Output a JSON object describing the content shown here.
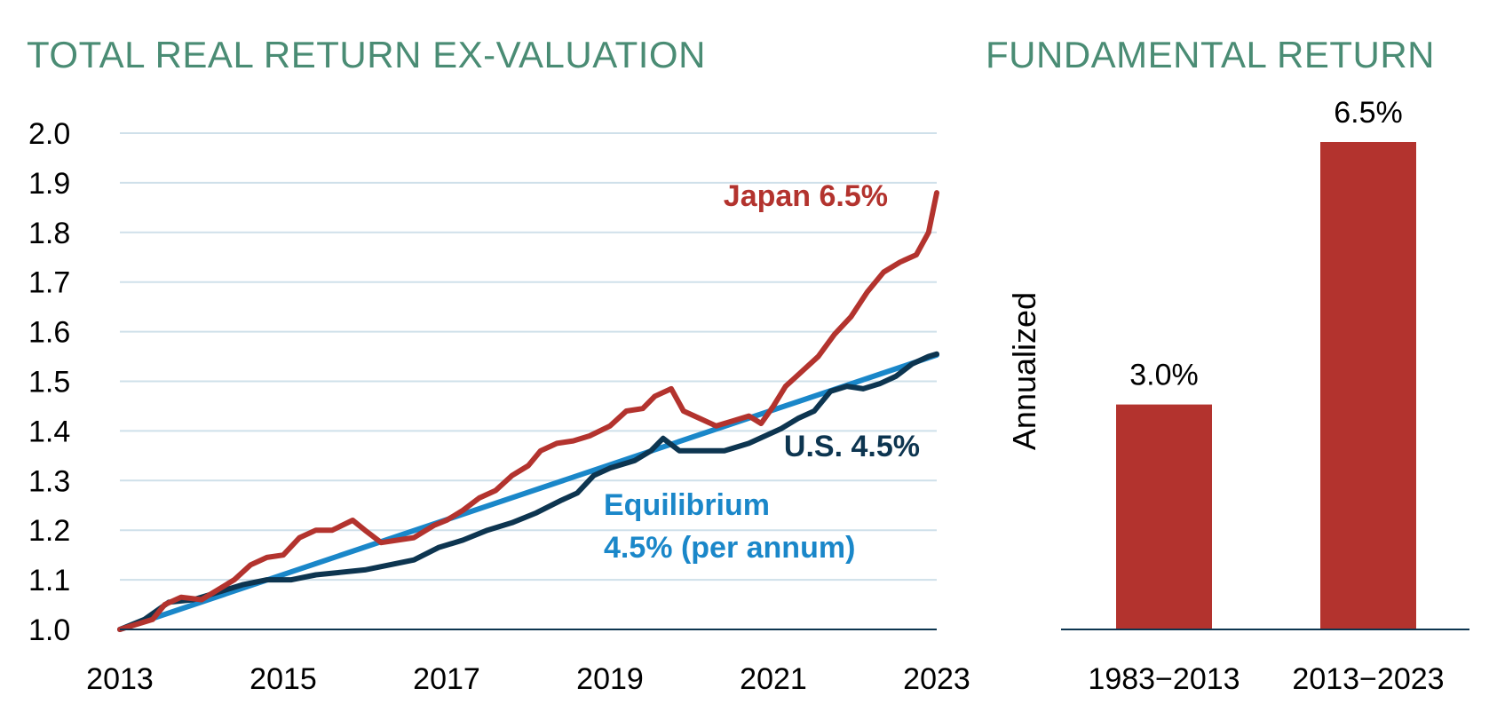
{
  "left_title": "TOTAL REAL RETURN EX-VALUATION",
  "right_title": "FUNDAMENTAL RETURN",
  "colors": {
    "title": "#4a8c74",
    "japan": "#b3332e",
    "us": "#0d3550",
    "equilibrium": "#1a87c9",
    "bar": "#b3332e",
    "grid": "#cfe0ea"
  },
  "chart_data": [
    {
      "type": "line",
      "title": "TOTAL REAL RETURN EX-VALUATION",
      "xlim": [
        2013,
        2023
      ],
      "ylim": [
        1.0,
        2.0
      ],
      "x_ticks": [
        "2013",
        "2015",
        "2017",
        "2019",
        "2021",
        "2023"
      ],
      "y_ticks": [
        "1.0",
        "1.1",
        "1.2",
        "1.3",
        "1.4",
        "1.5",
        "1.6",
        "1.7",
        "1.8",
        "1.9",
        "2.0"
      ],
      "grid": true,
      "series": [
        {
          "key": "japan",
          "label": "Japan 6.5%",
          "points": [
            [
              2013.0,
              1.0
            ],
            [
              2013.2,
              1.01
            ],
            [
              2013.4,
              1.02
            ],
            [
              2013.55,
              1.05
            ],
            [
              2013.75,
              1.065
            ],
            [
              2014.0,
              1.06
            ],
            [
              2014.2,
              1.08
            ],
            [
              2014.4,
              1.1
            ],
            [
              2014.6,
              1.13
            ],
            [
              2014.8,
              1.145
            ],
            [
              2015.0,
              1.15
            ],
            [
              2015.2,
              1.185
            ],
            [
              2015.4,
              1.2
            ],
            [
              2015.6,
              1.2
            ],
            [
              2015.85,
              1.22
            ],
            [
              2016.0,
              1.2
            ],
            [
              2016.2,
              1.175
            ],
            [
              2016.4,
              1.18
            ],
            [
              2016.6,
              1.185
            ],
            [
              2016.85,
              1.21
            ],
            [
              2017.0,
              1.22
            ],
            [
              2017.2,
              1.24
            ],
            [
              2017.4,
              1.265
            ],
            [
              2017.6,
              1.28
            ],
            [
              2017.8,
              1.31
            ],
            [
              2018.0,
              1.33
            ],
            [
              2018.15,
              1.36
            ],
            [
              2018.35,
              1.375
            ],
            [
              2018.55,
              1.38
            ],
            [
              2018.75,
              1.39
            ],
            [
              2019.0,
              1.41
            ],
            [
              2019.2,
              1.44
            ],
            [
              2019.4,
              1.445
            ],
            [
              2019.55,
              1.47
            ],
            [
              2019.75,
              1.485
            ],
            [
              2019.9,
              1.44
            ],
            [
              2020.1,
              1.425
            ],
            [
              2020.3,
              1.41
            ],
            [
              2020.5,
              1.42
            ],
            [
              2020.7,
              1.43
            ],
            [
              2020.85,
              1.415
            ],
            [
              2021.0,
              1.45
            ],
            [
              2021.15,
              1.49
            ],
            [
              2021.35,
              1.52
            ],
            [
              2021.55,
              1.55
            ],
            [
              2021.75,
              1.595
            ],
            [
              2021.95,
              1.63
            ],
            [
              2022.15,
              1.68
            ],
            [
              2022.35,
              1.72
            ],
            [
              2022.55,
              1.74
            ],
            [
              2022.75,
              1.755
            ],
            [
              2022.9,
              1.8
            ],
            [
              2023.0,
              1.88
            ]
          ]
        },
        {
          "key": "us",
          "label": "U.S. 4.5%",
          "points": [
            [
              2013.0,
              1.0
            ],
            [
              2013.3,
              1.02
            ],
            [
              2013.6,
              1.055
            ],
            [
              2013.9,
              1.06
            ],
            [
              2014.2,
              1.075
            ],
            [
              2014.5,
              1.09
            ],
            [
              2014.8,
              1.1
            ],
            [
              2015.1,
              1.1
            ],
            [
              2015.4,
              1.11
            ],
            [
              2015.7,
              1.115
            ],
            [
              2016.0,
              1.12
            ],
            [
              2016.3,
              1.13
            ],
            [
              2016.6,
              1.14
            ],
            [
              2016.9,
              1.165
            ],
            [
              2017.2,
              1.18
            ],
            [
              2017.5,
              1.2
            ],
            [
              2017.8,
              1.215
            ],
            [
              2018.1,
              1.235
            ],
            [
              2018.4,
              1.26
            ],
            [
              2018.6,
              1.275
            ],
            [
              2018.8,
              1.31
            ],
            [
              2019.0,
              1.325
            ],
            [
              2019.3,
              1.34
            ],
            [
              2019.5,
              1.36
            ],
            [
              2019.65,
              1.385
            ],
            [
              2019.85,
              1.36
            ],
            [
              2020.1,
              1.36
            ],
            [
              2020.4,
              1.36
            ],
            [
              2020.7,
              1.375
            ],
            [
              2020.9,
              1.39
            ],
            [
              2021.1,
              1.405
            ],
            [
              2021.3,
              1.425
            ],
            [
              2021.5,
              1.44
            ],
            [
              2021.7,
              1.48
            ],
            [
              2021.9,
              1.49
            ],
            [
              2022.1,
              1.485
            ],
            [
              2022.3,
              1.495
            ],
            [
              2022.5,
              1.51
            ],
            [
              2022.7,
              1.535
            ],
            [
              2022.9,
              1.55
            ],
            [
              2023.0,
              1.555
            ]
          ]
        },
        {
          "key": "equilibrium",
          "label_line1": "Equilibrium",
          "label_line2": "4.5% (per annum)",
          "points": [
            [
              2013.0,
              1.0
            ],
            [
              2023.0,
              1.553
            ]
          ]
        }
      ]
    },
    {
      "type": "bar",
      "title": "FUNDAMENTAL RETURN",
      "ylabel": "Annualized",
      "categories": [
        "1983−2013",
        "2013−2023"
      ],
      "values": [
        3.0,
        6.5
      ],
      "value_labels": [
        "3.0%",
        "6.5%"
      ],
      "ylim": [
        0,
        6.5
      ]
    }
  ]
}
